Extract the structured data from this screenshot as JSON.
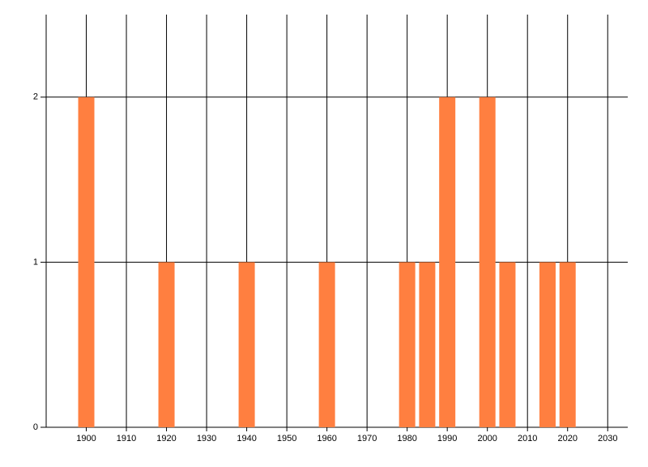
{
  "chart_data": {
    "type": "bar",
    "x": [
      1900,
      1920,
      1940,
      1960,
      1980,
      1985,
      1990,
      2000,
      2005,
      2015,
      2020
    ],
    "values": [
      2,
      1,
      1,
      1,
      1,
      1,
      2,
      2,
      1,
      1,
      1
    ],
    "color": "#ff7f40",
    "xlim": [
      1890,
      2035
    ],
    "xticks": [
      1900,
      1910,
      1920,
      1930,
      1940,
      1950,
      1960,
      1970,
      1980,
      1990,
      2000,
      2010,
      2020,
      2030
    ],
    "ylim": [
      0,
      2.5
    ],
    "yticks": [
      0,
      1,
      2
    ],
    "grid": true
  }
}
